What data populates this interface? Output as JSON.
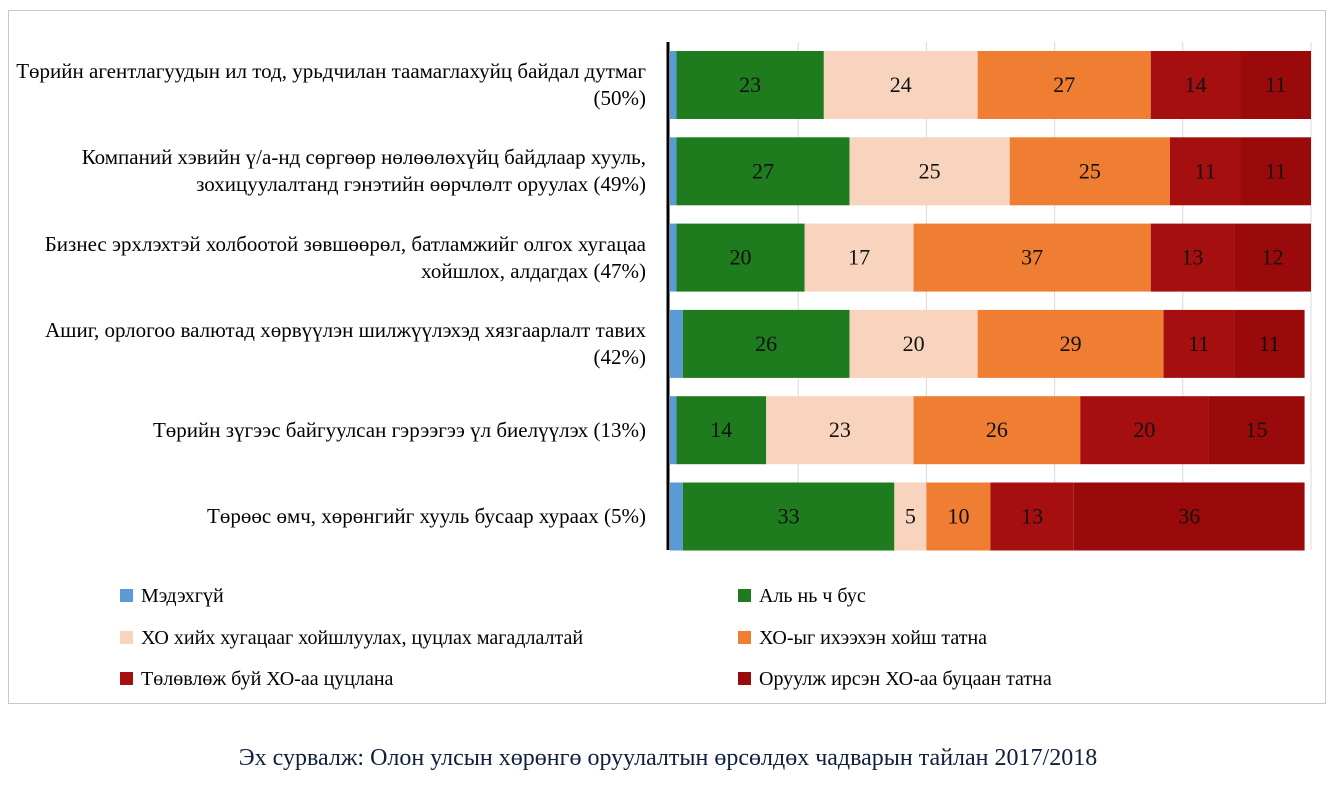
{
  "chart_data": {
    "type": "bar",
    "orientation": "horizontal",
    "stacked": true,
    "categories": [
      "Төрийн агентлагуудын ил тод, урьдчилан таамаглахуйц байдал дутмаг (50%)",
      "Компаний хэвийн ү/а-нд сөргөөр нөлөөлөхүйц байдлаар хууль, зохицуулалтанд гэнэтийн өөрчлөлт оруулах (49%)",
      "Бизнес эрхлэхтэй холбоотой зөвшөөрөл, батламжийг олгох хугацаа хойшлох, алдагдах (47%)",
      "Ашиг, орлогоо валютад хөрвүүлэн шилжүүлэхэд хязгаарлалт тавих (42%)",
      "Төрийн зүгээс байгуулсан гэрээгээ үл биелүүлэх (13%)",
      "Төрөөс өмч, хөрөнгийг хууль бусаар хураах (5%)"
    ],
    "series": [
      {
        "name": "Мэдэхгүй",
        "color": "#5b9bd5",
        "values": [
          1,
          1,
          1,
          2,
          1,
          2
        ],
        "labels": [
          "",
          "",
          "",
          "",
          "",
          ""
        ]
      },
      {
        "name": "Аль нь ч бус",
        "color": "#1e7b1e",
        "values": [
          23,
          27,
          20,
          26,
          14,
          33
        ],
        "labels": [
          "23",
          "27",
          "20",
          "26",
          "14",
          "33"
        ]
      },
      {
        "name": "ХО хийх хугацааг хойшлуулах, цуцлах магадлалтай",
        "color": "#f8d3bd",
        "values": [
          24,
          25,
          17,
          20,
          23,
          5
        ],
        "labels": [
          "24",
          "25",
          "17",
          "20",
          "23",
          "5"
        ]
      },
      {
        "name": "ХО-ыг ихээхэн хойш татна",
        "color": "#ef7d32",
        "values": [
          27,
          25,
          37,
          29,
          26,
          10
        ],
        "labels": [
          "27",
          "25",
          "37",
          "29",
          "26",
          "10"
        ]
      },
      {
        "name": "Төлөвлөж буй ХО-аа цуцлана",
        "color": "#a60f0f",
        "values": [
          14,
          11,
          13,
          11,
          20,
          13
        ],
        "labels": [
          "14",
          "11",
          "13",
          "11",
          "20",
          "13"
        ]
      },
      {
        "name": "Оруулж ирсэн ХО-аа буцаан татна",
        "color": "#9b0a0a",
        "values": [
          11,
          11,
          12,
          11,
          15,
          36
        ],
        "labels": [
          "11",
          "11",
          "12",
          "11",
          "15",
          "36"
        ]
      }
    ],
    "xlim": [
      0,
      100
    ],
    "grid": true,
    "legend_position": "bottom"
  },
  "source_note": "Эх сурвалж: Олон улсын хөрөнгө оруулалтын өрсөлдөх чадварын тайлан 2017/2018"
}
